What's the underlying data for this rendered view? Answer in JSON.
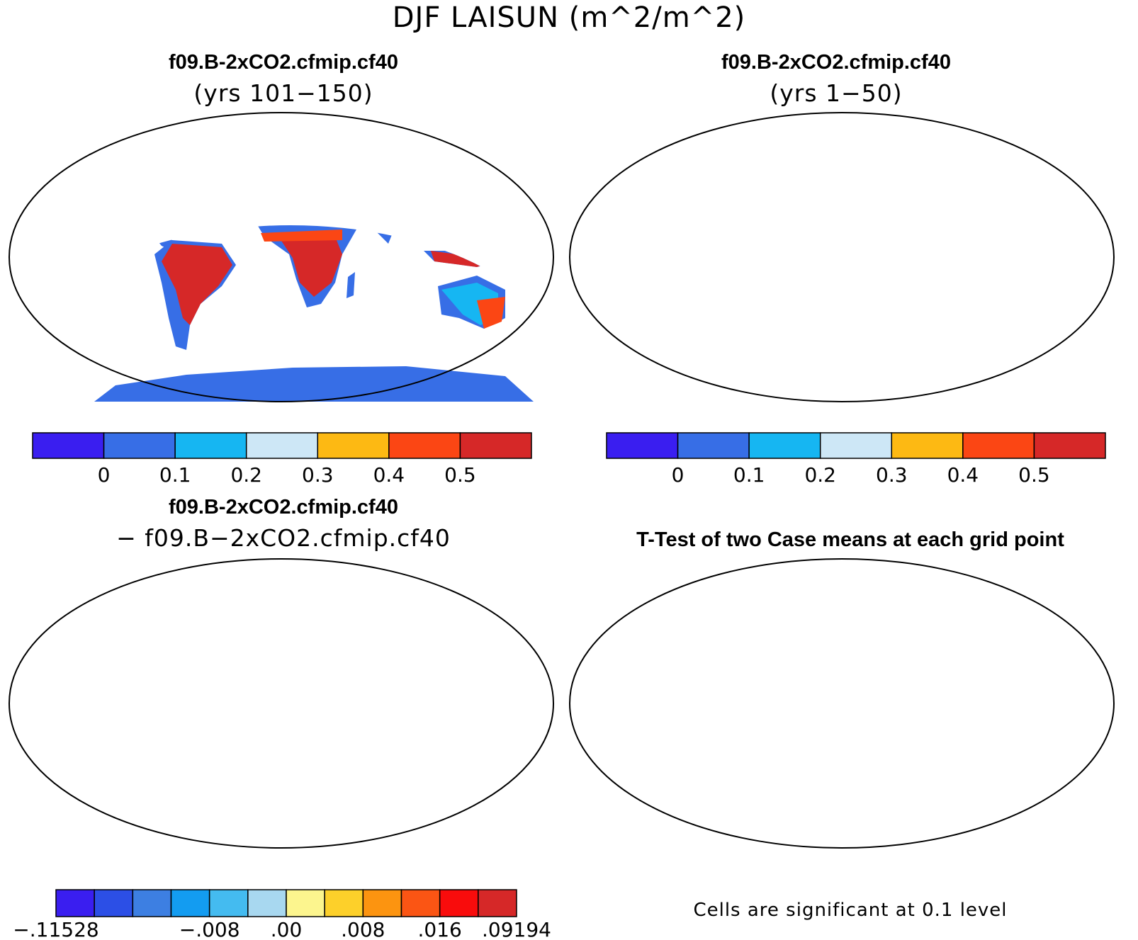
{
  "main_title": "DJF LAISUN (m^2/m^2)",
  "panels": [
    {
      "title": "f09.B-2xCO2.cfmip.cf40",
      "subtitle": "(yrs 101−150)"
    },
    {
      "title": "f09.B-2xCO2.cfmip.cf40",
      "subtitle": "(yrs 1−50)"
    },
    {
      "title": "f09.B-2xCO2.cfmip.cf40",
      "subtitle": "− f09.B−2xCO2.cfmip.cf40"
    },
    {
      "title": "T-Test of two Case means at each grid point",
      "note": "Cells are significant at 0.1 level"
    }
  ],
  "colorbars": {
    "abs": {
      "colors": [
        "#3a1ef0",
        "#376ee6",
        "#16b6f2",
        "#cde7f6",
        "#fdb913",
        "#fb4614",
        "#d62828"
      ],
      "labels": [
        "0",
        "0.1",
        "0.2",
        "0.3",
        "0.4",
        "0.5"
      ]
    },
    "diff": {
      "colors": [
        "#3a1ef0",
        "#2c4fe6",
        "#3d7fe2",
        "#139cf1",
        "#44bbf0",
        "#a8d8f0",
        "#fcf58e",
        "#fdd02a",
        "#fc9410",
        "#fb5514",
        "#f90c0c",
        "#d62828"
      ],
      "labels": [
        "−.11528",
        "−.008",
        ".00",
        ".008",
        ".016",
        ".09194"
      ]
    }
  },
  "legend_values": {
    "abs_levels": [
      0,
      0.1,
      0.2,
      0.3,
      0.4,
      0.5
    ],
    "diff_levels": [
      -0.11528,
      -0.008,
      0.0,
      0.008,
      0.016,
      0.09194
    ],
    "significance_level": 0.1
  }
}
